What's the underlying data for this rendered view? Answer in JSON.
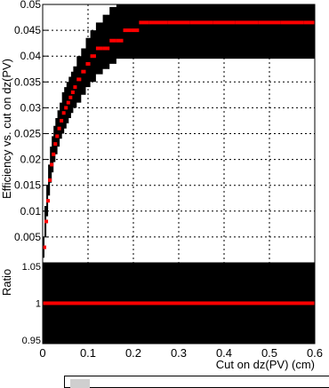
{
  "chart_data": [
    {
      "type": "scatter",
      "title": "",
      "xlabel": "",
      "ylabel": "Efficiency vs. cut on dz(PV)",
      "xlim": [
        0,
        0.6
      ],
      "ylim": [
        0,
        0.05
      ],
      "xticks": [
        "0",
        "0.1",
        "0.2",
        "0.3",
        "0.4",
        "0.5",
        "0.6"
      ],
      "yticks": [
        "0.005",
        "0.01",
        "0.015",
        "0.02",
        "0.025",
        "0.03",
        "0.035",
        "0.04",
        "0.045",
        "0.05"
      ],
      "grid": true,
      "marker_color": "#ff0000",
      "band_color": "#000000",
      "series": [
        {
          "x": [
            0.002,
            0.006,
            0.01,
            0.014,
            0.018,
            0.022,
            0.026,
            0.03,
            0.035,
            0.04,
            0.045,
            0.05,
            0.055,
            0.06,
            0.065,
            0.07,
            0.08,
            0.09,
            0.1,
            0.11,
            0.125,
            0.14,
            0.155,
            0.17,
            0.185,
            0.205,
            0.22,
            0.25,
            0.3,
            0.35,
            0.4,
            0.45,
            0.5,
            0.55,
            0.6
          ],
          "y": [
            0.003,
            0.008,
            0.012,
            0.016,
            0.019,
            0.021,
            0.023,
            0.0245,
            0.026,
            0.0275,
            0.029,
            0.03,
            0.031,
            0.032,
            0.033,
            0.034,
            0.0355,
            0.037,
            0.0385,
            0.04,
            0.0415,
            0.0415,
            0.043,
            0.043,
            0.045,
            0.045,
            0.0465,
            0.0465,
            0.0465,
            0.0465,
            0.0465,
            0.0465,
            0.0465,
            0.0465,
            0.0465
          ],
          "band_low": [
            0.001,
            0.005,
            0.009,
            0.013,
            0.0155,
            0.0175,
            0.0195,
            0.021,
            0.0225,
            0.024,
            0.025,
            0.026,
            0.027,
            0.028,
            0.029,
            0.03,
            0.031,
            0.0325,
            0.034,
            0.035,
            0.0365,
            0.0375,
            0.0385,
            0.0395,
            0.0395,
            0.0395,
            0.0395,
            0.0395,
            0.0395,
            0.0395,
            0.0395,
            0.0395,
            0.0395,
            0.0395,
            0.0395
          ],
          "band_high": [
            0.005,
            0.011,
            0.015,
            0.019,
            0.0225,
            0.0245,
            0.0265,
            0.028,
            0.0295,
            0.031,
            0.033,
            0.034,
            0.035,
            0.036,
            0.037,
            0.038,
            0.04,
            0.0415,
            0.0435,
            0.045,
            0.0465,
            0.048,
            0.0495,
            0.05,
            0.05,
            0.05,
            0.05,
            0.05,
            0.05,
            0.05,
            0.05,
            0.05,
            0.05,
            0.05,
            0.05
          ]
        }
      ]
    },
    {
      "type": "line",
      "title": "",
      "xlabel": "Cut on dz(PV) (cm)",
      "ylabel": "Ratio",
      "xlim": [
        0,
        0.6
      ],
      "ylim": [
        0.95,
        1.05
      ],
      "xticks": [
        "0",
        "0.1",
        "0.2",
        "0.3",
        "0.4",
        "0.5",
        "0.6"
      ],
      "yticks": [
        "0.95",
        "1",
        "1.05"
      ],
      "y_tick_labels": [
        "0.95",
        "1",
        "1.05"
      ],
      "grid": true,
      "series": [
        {
          "x": [
            0,
            0.6
          ],
          "y": [
            1,
            1
          ]
        }
      ]
    }
  ]
}
